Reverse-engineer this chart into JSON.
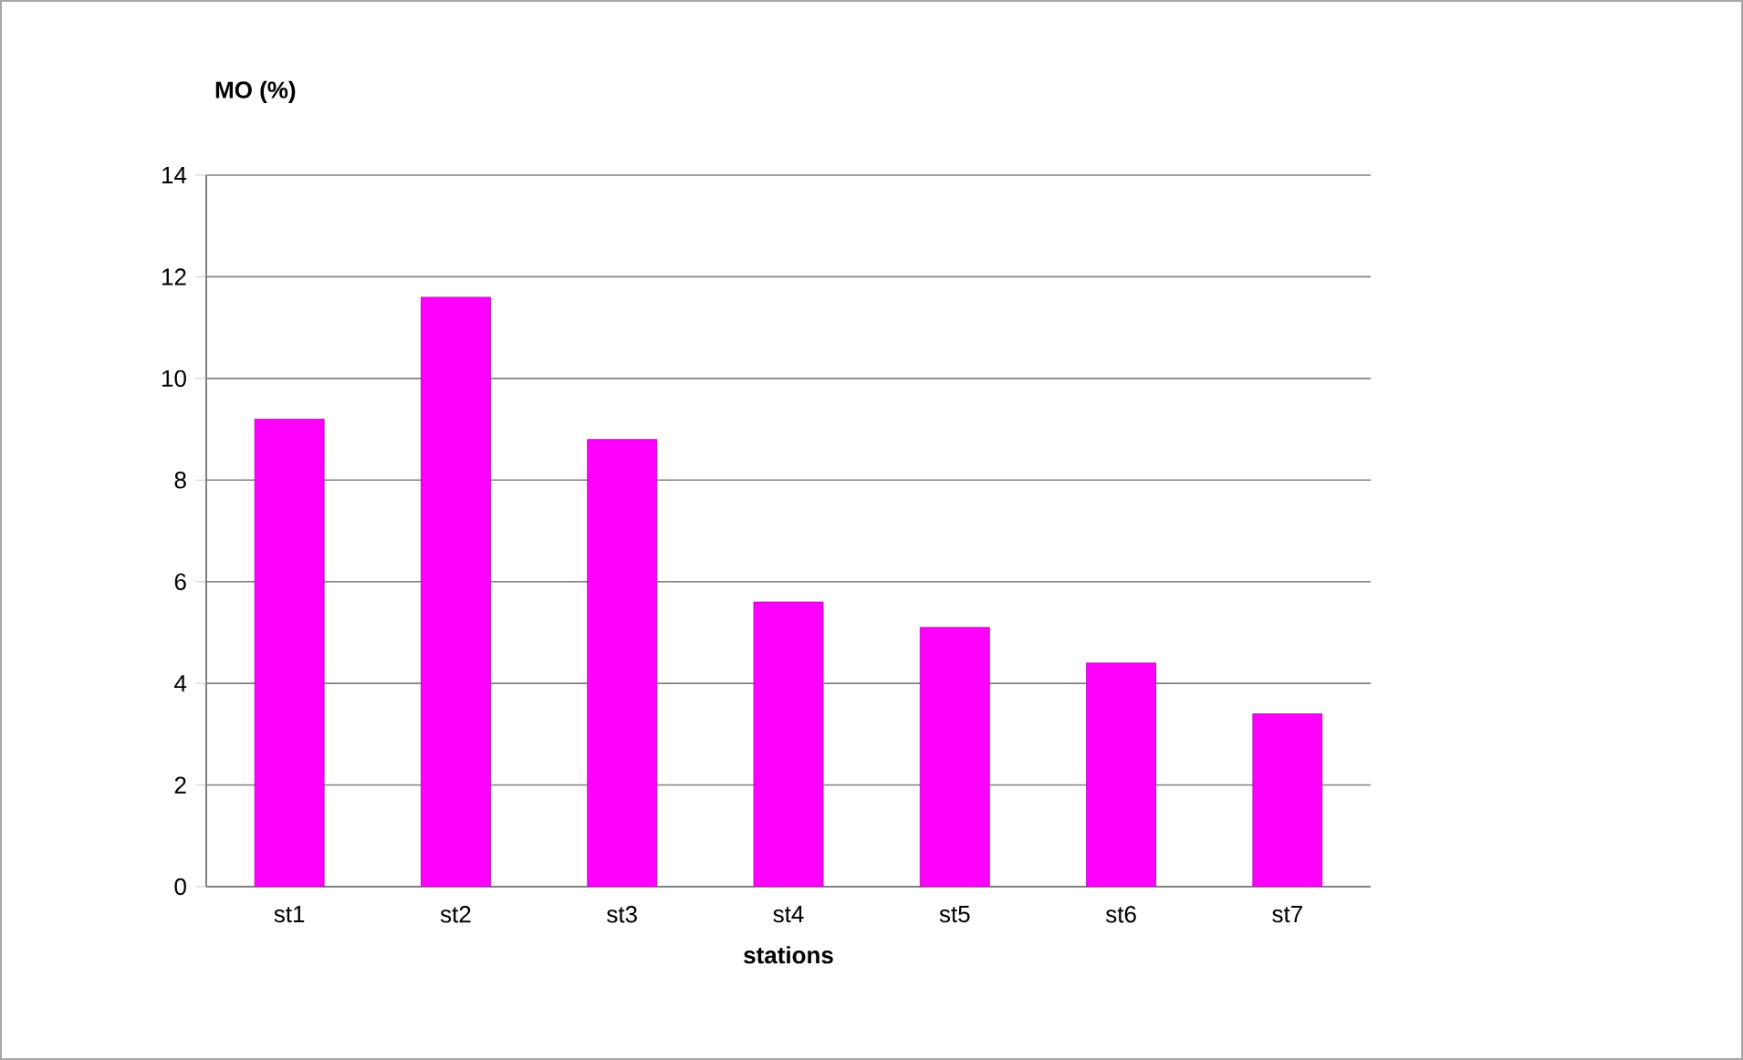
{
  "chart_data": {
    "type": "bar",
    "ylabel": "MO (%)",
    "xlabel": "stations",
    "categories": [
      "st1",
      "st2",
      "st3",
      "st4",
      "st5",
      "st6",
      "st7"
    ],
    "values": [
      9.2,
      11.6,
      8.8,
      5.6,
      5.1,
      4.4,
      3.4
    ],
    "color": "#ff00ff",
    "ylim": [
      0,
      14
    ],
    "yticks": [
      0,
      2,
      4,
      6,
      8,
      10,
      12,
      14
    ],
    "grid": "y"
  }
}
